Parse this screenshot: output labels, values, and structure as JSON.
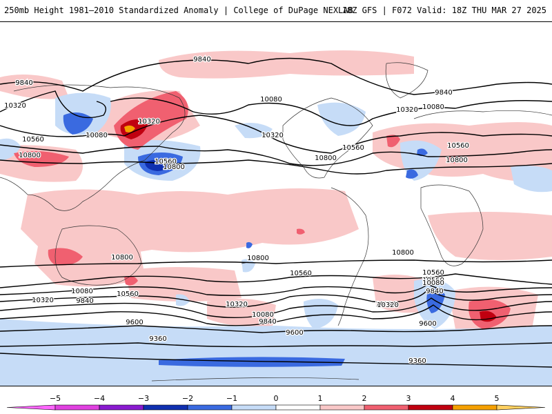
{
  "header": {
    "title": "250mb Height 1981–2010 Standardized Anomaly | College of DuPage NEXLAB",
    "run_info": "18Z GFS | F072 Valid: 18Z THU MAR 27 2025"
  },
  "contour_labels": [
    {
      "text": "9840"
    },
    {
      "text": "9840"
    },
    {
      "text": "10320"
    },
    {
      "text": "10560"
    },
    {
      "text": "10800"
    },
    {
      "text": "10080"
    },
    {
      "text": "10320"
    },
    {
      "text": "10560"
    },
    {
      "text": "10800"
    },
    {
      "text": "10080"
    },
    {
      "text": "10320"
    },
    {
      "text": "10560"
    },
    {
      "text": "10800"
    },
    {
      "text": "9840"
    },
    {
      "text": "10320"
    },
    {
      "text": "10080"
    },
    {
      "text": "10560"
    },
    {
      "text": "10800"
    },
    {
      "text": "10800"
    },
    {
      "text": "10800"
    },
    {
      "text": "10800"
    },
    {
      "text": "10560"
    },
    {
      "text": "10560"
    },
    {
      "text": "10080"
    },
    {
      "text": "10320"
    },
    {
      "text": "9840"
    },
    {
      "text": "10560"
    },
    {
      "text": "10320"
    },
    {
      "text": "10080"
    },
    {
      "text": "9840"
    },
    {
      "text": "10320"
    },
    {
      "text": "9600"
    },
    {
      "text": "9360"
    },
    {
      "text": "9600"
    },
    {
      "text": "10560"
    },
    {
      "text": "10080"
    },
    {
      "text": "9840"
    },
    {
      "text": "10320"
    },
    {
      "text": "9600"
    },
    {
      "text": "9360"
    }
  ],
  "colorbar": {
    "ticks": [
      "−5",
      "−4",
      "−3",
      "−2",
      "−1",
      "0",
      "1",
      "2",
      "3",
      "4",
      "5"
    ],
    "colors": [
      "#e040e0",
      "#8a1ad0",
      "#1030b0",
      "#3a6ae0",
      "#c6dcf7",
      "#ffffff",
      "#f9c8c8",
      "#f06070",
      "#c00010",
      "#f5a000"
    ],
    "end_low": "#ff66ff",
    "end_high": "#ffd060"
  }
}
